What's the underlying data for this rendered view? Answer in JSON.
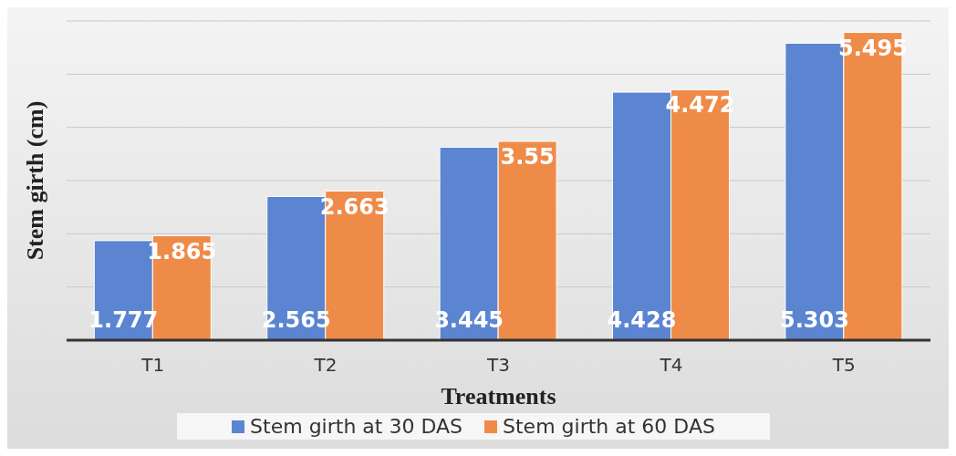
{
  "chart_data": {
    "type": "bar",
    "xlabel": "Treatments",
    "ylabel": "Stem girth (cm)",
    "categories": [
      "T1",
      "T2",
      "T3",
      "T4",
      "T5"
    ],
    "series": [
      {
        "name": "Stem girth at 30 DAS",
        "color": "#5b84d1",
        "values": [
          1.777,
          2.565,
          3.445,
          4.428,
          5.303
        ]
      },
      {
        "name": "Stem girth at 60 DAS",
        "color": "#ef8b48",
        "values": [
          1.865,
          2.663,
          3.55,
          4.472,
          5.495
        ]
      }
    ],
    "grid": "y",
    "tick_labels": "x",
    "data_labels": true,
    "legend": "bottom"
  }
}
